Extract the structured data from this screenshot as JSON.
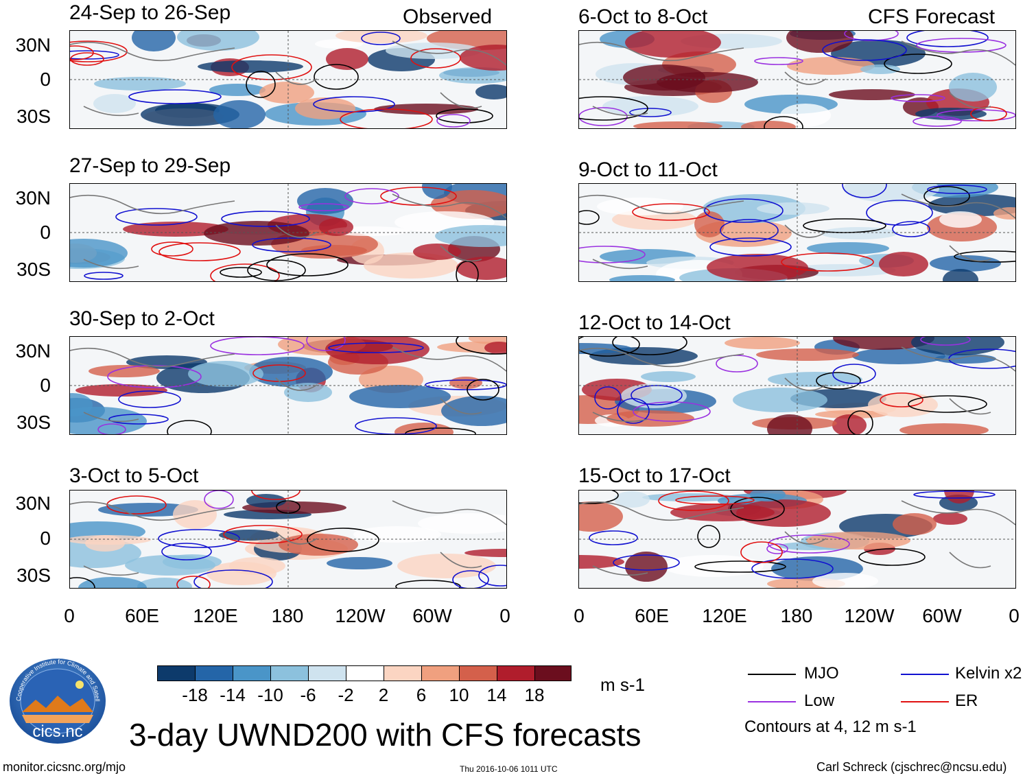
{
  "observed_label": "Observed",
  "forecast_label": "CFS Forecast",
  "observed_panels": [
    {
      "title": "24-Sep to 26-Sep"
    },
    {
      "title": "27-Sep to 29-Sep"
    },
    {
      "title": "30-Sep to 2-Oct"
    },
    {
      "title": "3-Oct to 5-Oct"
    }
  ],
  "forecast_panels": [
    {
      "title": "6-Oct to 8-Oct"
    },
    {
      "title": "9-Oct to 11-Oct"
    },
    {
      "title": "12-Oct to 14-Oct"
    },
    {
      "title": "15-Oct to 17-Oct"
    }
  ],
  "lat_labels": [
    "30N",
    "0",
    "30S"
  ],
  "lon_labels": [
    "0",
    "60E",
    "120E",
    "180",
    "120W",
    "60W",
    "0"
  ],
  "colorbar": {
    "colors": [
      "#0d3a6b",
      "#2465a8",
      "#4a95c8",
      "#8cc1dd",
      "#cfe3ef",
      "#ffffff",
      "#fbd5c2",
      "#f0a07f",
      "#d4604b",
      "#b01d2c",
      "#6b0e1e"
    ],
    "ticks": [
      "-18",
      "-14",
      "-10",
      "-6",
      "-2",
      "2",
      "6",
      "10",
      "14",
      "18"
    ],
    "units": "m s-1"
  },
  "legend": {
    "items": [
      {
        "label": "MJO",
        "color": "#000000"
      },
      {
        "label": "Kelvin x2",
        "color": "#1010d0"
      },
      {
        "label": "Low",
        "color": "#9a30e0"
      },
      {
        "label": "ER",
        "color": "#e01010"
      }
    ],
    "note": "Contours at 4, 12 m s-1"
  },
  "logo_text": "cics.nc",
  "logo_ring_text": "Cooperative Institute for Climate and Satellites",
  "main_title": "3-day UWND200 with CFS forecasts",
  "footer": {
    "url": "monitor.cicsnc.org/mjo",
    "timestamp": "Thu 2016-10-06 1011 UTC",
    "credit": "Carl Schreck (cjschrec@ncsu.edu)"
  }
}
